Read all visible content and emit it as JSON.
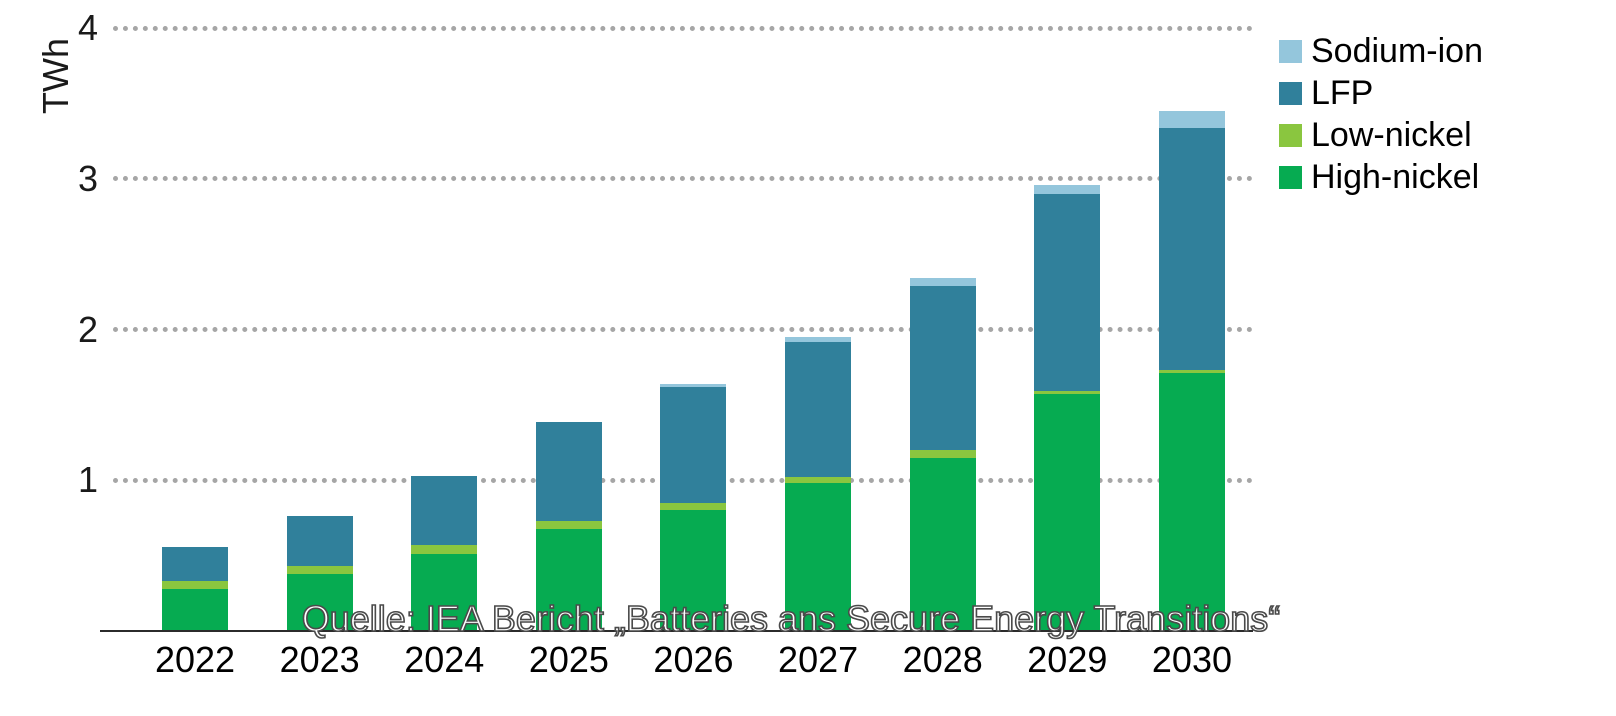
{
  "chart_data": {
    "type": "bar",
    "stacked": true,
    "unit_label": "TWh",
    "categories": [
      "2022",
      "2023",
      "2024",
      "2025",
      "2026",
      "2027",
      "2028",
      "2029",
      "2030"
    ],
    "series": [
      {
        "name": "High-nickel",
        "color": "#06ab51",
        "values": [
          0.28,
          0.38,
          0.51,
          0.68,
          0.8,
          0.98,
          1.15,
          1.57,
          1.71
        ]
      },
      {
        "name": "Low-nickel",
        "color": "#8ac63f",
        "values": [
          0.05,
          0.05,
          0.06,
          0.05,
          0.05,
          0.04,
          0.05,
          0.02,
          0.02
        ]
      },
      {
        "name": "LFP",
        "color": "#30809b",
        "values": [
          0.23,
          0.33,
          0.46,
          0.66,
          0.77,
          0.9,
          1.09,
          1.31,
          1.61
        ]
      },
      {
        "name": "Sodium-ion",
        "color": "#94c6dc",
        "values": [
          0.0,
          0.0,
          0.0,
          0.0,
          0.02,
          0.03,
          0.05,
          0.06,
          0.11
        ]
      }
    ],
    "legend_order": [
      "Sodium-ion",
      "LFP",
      "Low-nickel",
      "High-nickel"
    ],
    "y_ticks": [
      1,
      2,
      3,
      4
    ],
    "ylim": [
      0,
      4.2
    ],
    "grid": "dotted-horizontal",
    "legend_position": "top-right",
    "source_caption": "Quelle: IEA Bericht „Batteries ans Secure Energy Transitions“"
  },
  "colors": {
    "gridline": "#a6a6a6",
    "axis_line": "#2b2b2b",
    "text": "#1a1a1a",
    "caption_fill": "#ffffff",
    "caption_outline": "#4a4a4a"
  }
}
